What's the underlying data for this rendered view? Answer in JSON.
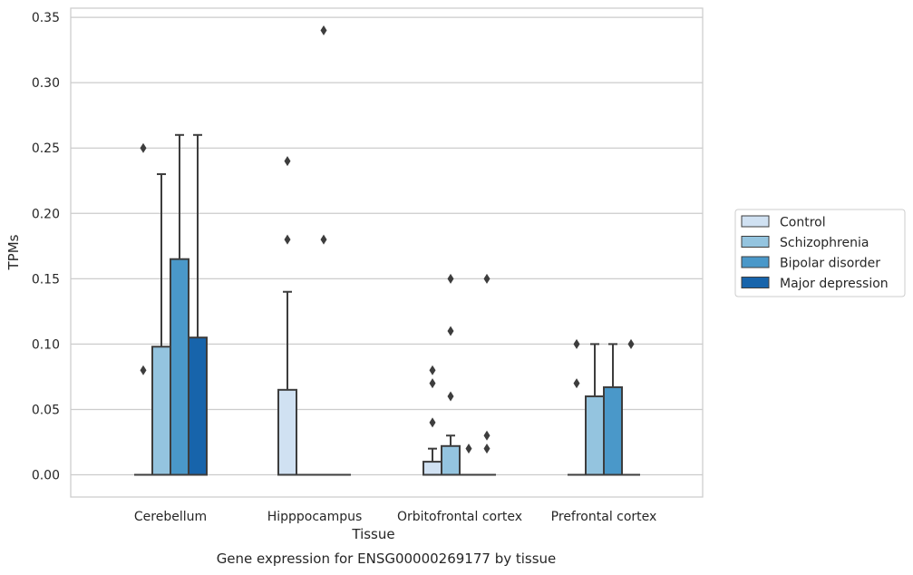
{
  "chart_data": {
    "type": "boxplot",
    "title": "Gene expression for ENSG00000269177 by tissue",
    "xlabel": "Tissue",
    "ylabel": "TPMs",
    "ylim": [
      -0.017,
      0.357
    ],
    "yticks": [
      0.0,
      0.05,
      0.1,
      0.15,
      0.2,
      0.25,
      0.3,
      0.35
    ],
    "ytick_labels": [
      "0.00",
      "0.05",
      "0.10",
      "0.15",
      "0.20",
      "0.25",
      "0.30",
      "0.35"
    ],
    "grid": true,
    "legend_position": "right",
    "categories": [
      "Cerebellum",
      "Hipppocampus",
      "Orbitofrontal cortex",
      "Prefrontal cortex"
    ],
    "series": [
      {
        "name": "Control",
        "color": "#d0e1f2",
        "boxes": [
          {
            "q1": 0,
            "median": 0,
            "q3": 0,
            "whisker_low": 0,
            "whisker_high": 0,
            "outliers": [
              0.08,
              0.25
            ]
          },
          {
            "q1": 0,
            "median": 0,
            "q3": 0.065,
            "whisker_low": 0,
            "whisker_high": 0.14,
            "outliers": [
              0.18,
              0.24
            ]
          },
          {
            "q1": 0,
            "median": 0,
            "q3": 0.01,
            "whisker_low": 0,
            "whisker_high": 0.02,
            "outliers": [
              0.04,
              0.07,
              0.08
            ]
          },
          {
            "q1": 0,
            "median": 0,
            "q3": 0,
            "whisker_low": 0,
            "whisker_high": 0,
            "outliers": [
              0.07,
              0.1
            ]
          }
        ]
      },
      {
        "name": "Schizophrenia",
        "color": "#94c4df",
        "boxes": [
          {
            "q1": 0,
            "median": 0,
            "q3": 0.098,
            "whisker_low": 0,
            "whisker_high": 0.23,
            "outliers": []
          },
          {
            "q1": 0,
            "median": 0,
            "q3": 0,
            "whisker_low": 0,
            "whisker_high": 0,
            "outliers": []
          },
          {
            "q1": 0,
            "median": 0,
            "q3": 0.022,
            "whisker_low": 0,
            "whisker_high": 0.03,
            "outliers": [
              0.06,
              0.11,
              0.15
            ]
          },
          {
            "q1": 0,
            "median": 0,
            "q3": 0.06,
            "whisker_low": 0,
            "whisker_high": 0.1,
            "outliers": []
          }
        ]
      },
      {
        "name": "Bipolar disorder",
        "color": "#4a98c9",
        "boxes": [
          {
            "q1": 0,
            "median": 0,
            "q3": 0.165,
            "whisker_low": 0,
            "whisker_high": 0.26,
            "outliers": []
          },
          {
            "q1": 0,
            "median": 0,
            "q3": 0,
            "whisker_low": 0,
            "whisker_high": 0,
            "outliers": [
              0.18,
              0.34
            ]
          },
          {
            "q1": 0,
            "median": 0,
            "q3": 0,
            "whisker_low": 0,
            "whisker_high": 0,
            "outliers": [
              0.02
            ]
          },
          {
            "q1": 0,
            "median": 0,
            "q3": 0.067,
            "whisker_low": 0,
            "whisker_high": 0.1,
            "outliers": []
          }
        ]
      },
      {
        "name": "Major depression",
        "color": "#1764ab",
        "boxes": [
          {
            "q1": 0,
            "median": 0,
            "q3": 0.105,
            "whisker_low": 0,
            "whisker_high": 0.26,
            "outliers": []
          },
          {
            "q1": 0,
            "median": 0,
            "q3": 0,
            "whisker_low": 0,
            "whisker_high": 0,
            "outliers": []
          },
          {
            "q1": 0,
            "median": 0,
            "q3": 0,
            "whisker_low": 0,
            "whisker_high": 0,
            "outliers": [
              0.02,
              0.03,
              0.15
            ]
          },
          {
            "q1": 0,
            "median": 0,
            "q3": 0,
            "whisker_low": 0,
            "whisker_high": 0,
            "outliers": [
              0.1
            ]
          }
        ]
      }
    ]
  }
}
